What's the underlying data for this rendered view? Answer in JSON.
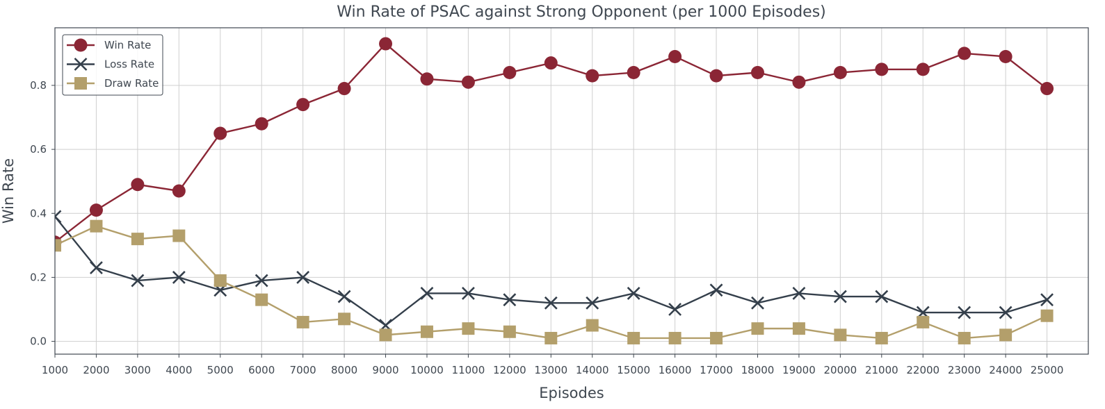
{
  "chart_data": {
    "type": "line",
    "title": "Win Rate of PSAC against Strong Opponent (per 1000 Episodes)",
    "xlabel": "Episodes",
    "ylabel": "Win Rate",
    "x": [
      1000,
      2000,
      3000,
      4000,
      5000,
      6000,
      7000,
      8000,
      9000,
      10000,
      11000,
      12000,
      13000,
      14000,
      15000,
      16000,
      17000,
      18000,
      19000,
      20000,
      21000,
      22000,
      23000,
      24000,
      25000
    ],
    "xlim": [
      1000,
      26000
    ],
    "ylim": [
      -0.04,
      0.98
    ],
    "yticks": [
      0.0,
      0.2,
      0.4,
      0.6,
      0.8
    ],
    "ytick_labels": [
      "0.0",
      "0.2",
      "0.4",
      "0.6",
      "0.8"
    ],
    "grid": true,
    "legend_position": "top-left",
    "series": [
      {
        "name": "Win Rate",
        "color": "#8b2635",
        "marker": "circle",
        "values": [
          0.31,
          0.41,
          0.49,
          0.47,
          0.65,
          0.68,
          0.74,
          0.79,
          0.93,
          0.82,
          0.81,
          0.84,
          0.87,
          0.83,
          0.84,
          0.89,
          0.83,
          0.84,
          0.81,
          0.84,
          0.85,
          0.85,
          0.9,
          0.89,
          0.79
        ]
      },
      {
        "name": "Loss Rate",
        "color": "#343f4b",
        "marker": "x",
        "values": [
          0.39,
          0.23,
          0.19,
          0.2,
          0.16,
          0.19,
          0.2,
          0.14,
          0.05,
          0.15,
          0.15,
          0.13,
          0.12,
          0.12,
          0.15,
          0.1,
          0.16,
          0.12,
          0.15,
          0.14,
          0.14,
          0.09,
          0.09,
          0.09,
          0.13
        ]
      },
      {
        "name": "Draw Rate",
        "color": "#b39f6b",
        "marker": "square",
        "values": [
          0.3,
          0.36,
          0.32,
          0.33,
          0.19,
          0.13,
          0.06,
          0.07,
          0.02,
          0.03,
          0.04,
          0.03,
          0.01,
          0.05,
          0.01,
          0.01,
          0.01,
          0.04,
          0.04,
          0.02,
          0.01,
          0.06,
          0.01,
          0.02,
          0.08
        ]
      }
    ]
  }
}
